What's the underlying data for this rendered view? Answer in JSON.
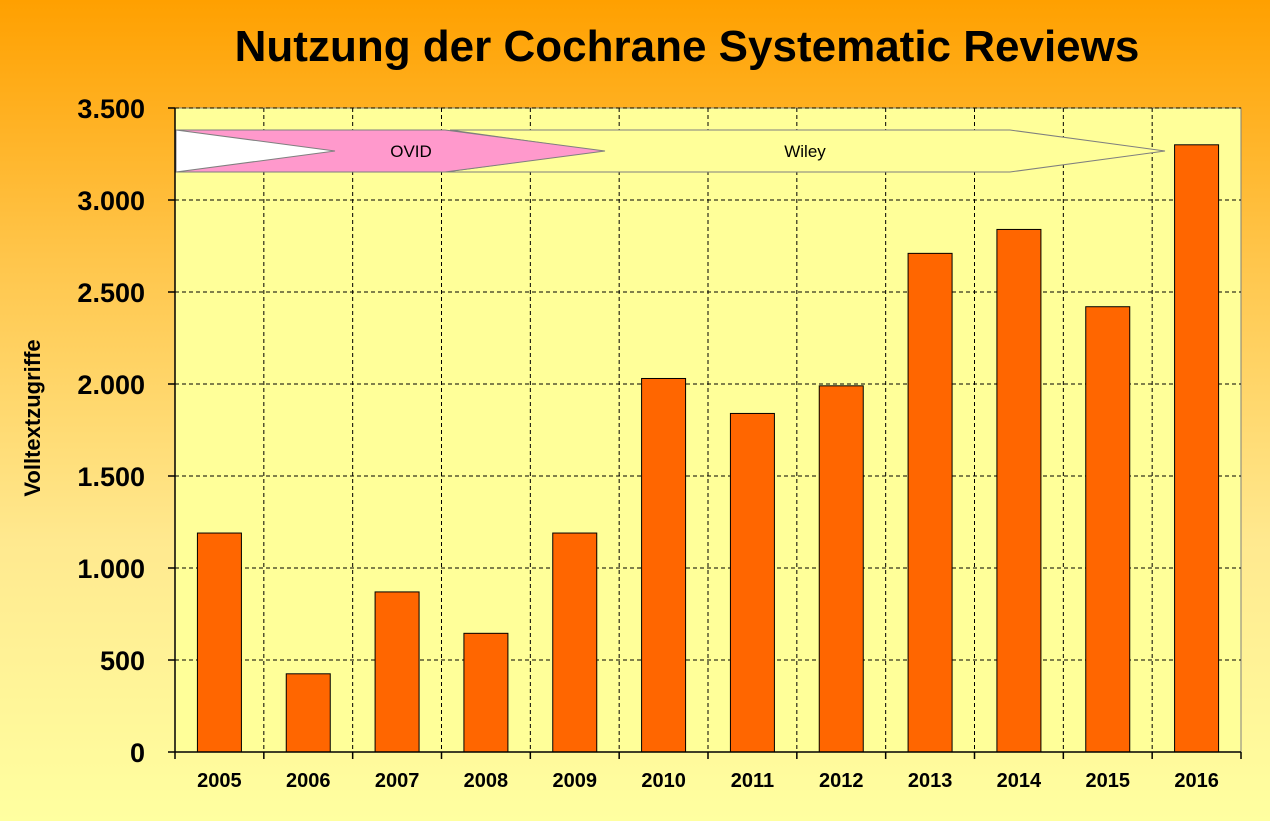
{
  "chart_data": {
    "type": "bar",
    "title": "Nutzung der Cochrane Systematic Reviews",
    "xlabel": "",
    "ylabel": "Volltextzugriffe",
    "categories": [
      "2005",
      "2006",
      "2007",
      "2008",
      "2009",
      "2010",
      "2011",
      "2012",
      "2013",
      "2014",
      "2015",
      "2016"
    ],
    "values": [
      1190,
      425,
      870,
      645,
      1190,
      2030,
      1840,
      1990,
      2710,
      2840,
      2420,
      3300
    ],
    "ylim": [
      0,
      3500
    ],
    "yticks": [
      0,
      500,
      1000,
      1500,
      2000,
      2500,
      3000,
      3500
    ],
    "ytick_labels": [
      "0",
      "500",
      "1.000",
      "1.500",
      "2.000",
      "2.500",
      "3.000",
      "3.500"
    ],
    "grid": true,
    "bar_color": "#ff6600",
    "plot_background": "#ffff99",
    "annotations": [
      {
        "label": "OVID",
        "color": "#ff99cc"
      },
      {
        "label": "Wiley",
        "color": "#ffff99"
      }
    ]
  }
}
